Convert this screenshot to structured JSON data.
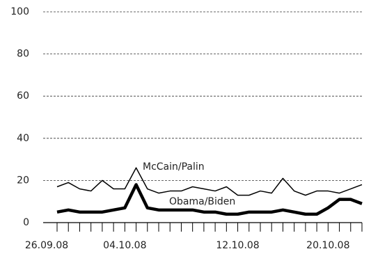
{
  "chart_data": {
    "type": "line",
    "categories": [
      "26.09.08",
      null,
      null,
      null,
      null,
      null,
      "04.10.08",
      null,
      null,
      null,
      null,
      null,
      null,
      null,
      null,
      null,
      "12.10.08",
      null,
      null,
      null,
      null,
      null,
      null,
      null,
      "20.10.08",
      null,
      null,
      null
    ],
    "series": [
      {
        "name": "McCain/Palin",
        "color": "#000000",
        "width": 1.5,
        "values": [
          17,
          19,
          16,
          15,
          20,
          16,
          16,
          26,
          16,
          14,
          15,
          15,
          17,
          16,
          15,
          17,
          13,
          13,
          15,
          14,
          21,
          15,
          13,
          15,
          15,
          14,
          16,
          18
        ]
      },
      {
        "name": "Obama/Biden",
        "color": "#000000",
        "width": 4.5,
        "values": [
          5,
          6,
          5,
          5,
          5,
          6,
          7,
          18,
          7,
          6,
          6,
          6,
          6,
          5,
          5,
          4,
          4,
          5,
          5,
          5,
          6,
          5,
          4,
          4,
          7,
          11,
          11,
          9
        ]
      }
    ],
    "ylim": [
      0,
      100
    ],
    "yticks": [
      0,
      20,
      40,
      60,
      80,
      100
    ],
    "grid": true
  }
}
